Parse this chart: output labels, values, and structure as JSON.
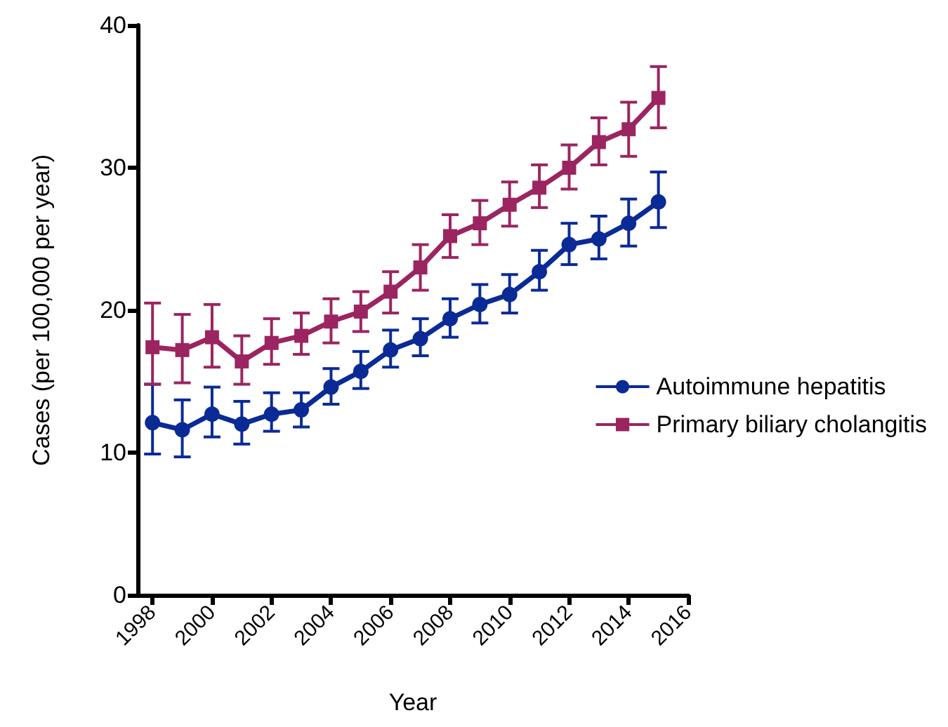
{
  "chart_data": {
    "type": "line",
    "xlabel": "Year",
    "ylabel": "Cases (per 100,000 per year)",
    "x": [
      1998,
      1999,
      2000,
      2001,
      2002,
      2003,
      2004,
      2005,
      2006,
      2007,
      2008,
      2009,
      2010,
      2011,
      2012,
      2013,
      2014,
      2015
    ],
    "series": [
      {
        "name": "Autoimmune hepatitis",
        "color": "#0a2a96",
        "marker": "circle",
        "values": [
          12.1,
          11.6,
          12.7,
          12.0,
          12.7,
          13.0,
          14.6,
          15.7,
          17.2,
          18.0,
          19.4,
          20.4,
          21.1,
          22.7,
          24.6,
          25.0,
          26.1,
          27.6
        ],
        "errors": [
          [
            9.9,
            14.8
          ],
          [
            9.7,
            13.7
          ],
          [
            11.1,
            14.6
          ],
          [
            10.6,
            13.6
          ],
          [
            11.5,
            14.2
          ],
          [
            11.8,
            14.2
          ],
          [
            13.4,
            15.9
          ],
          [
            14.5,
            17.1
          ],
          [
            16.0,
            18.6
          ],
          [
            16.8,
            19.4
          ],
          [
            18.1,
            20.8
          ],
          [
            19.1,
            21.8
          ],
          [
            19.8,
            22.5
          ],
          [
            21.4,
            24.2
          ],
          [
            23.2,
            26.1
          ],
          [
            23.6,
            26.6
          ],
          [
            24.5,
            27.8
          ],
          [
            25.8,
            29.7
          ]
        ]
      },
      {
        "name": "Primary biliary cholangitis",
        "color": "#9b2560",
        "marker": "square",
        "values": [
          17.4,
          17.2,
          18.1,
          16.4,
          17.7,
          18.2,
          19.2,
          19.9,
          21.3,
          23.0,
          25.2,
          26.1,
          27.4,
          28.6,
          30.0,
          31.8,
          32.7,
          34.9
        ],
        "errors": [
          [
            14.8,
            20.5
          ],
          [
            14.9,
            19.7
          ],
          [
            16.0,
            20.4
          ],
          [
            14.8,
            18.2
          ],
          [
            16.2,
            19.4
          ],
          [
            16.9,
            19.8
          ],
          [
            17.7,
            20.8
          ],
          [
            18.5,
            21.3
          ],
          [
            19.8,
            22.7
          ],
          [
            21.4,
            24.6
          ],
          [
            23.7,
            26.7
          ],
          [
            24.6,
            27.7
          ],
          [
            25.9,
            29.0
          ],
          [
            27.2,
            30.2
          ],
          [
            28.5,
            31.6
          ],
          [
            30.2,
            33.5
          ],
          [
            30.8,
            34.6
          ],
          [
            32.8,
            37.1
          ]
        ]
      }
    ],
    "xlim": [
      1997.5,
      2016
    ],
    "xticks": [
      1998,
      2000,
      2002,
      2004,
      2006,
      2008,
      2010,
      2012,
      2014,
      2016
    ],
    "ylim": [
      0,
      40
    ],
    "yticks": [
      0,
      10,
      20,
      30,
      40
    ],
    "grid": false,
    "legend": "right",
    "line_style": "solid"
  }
}
